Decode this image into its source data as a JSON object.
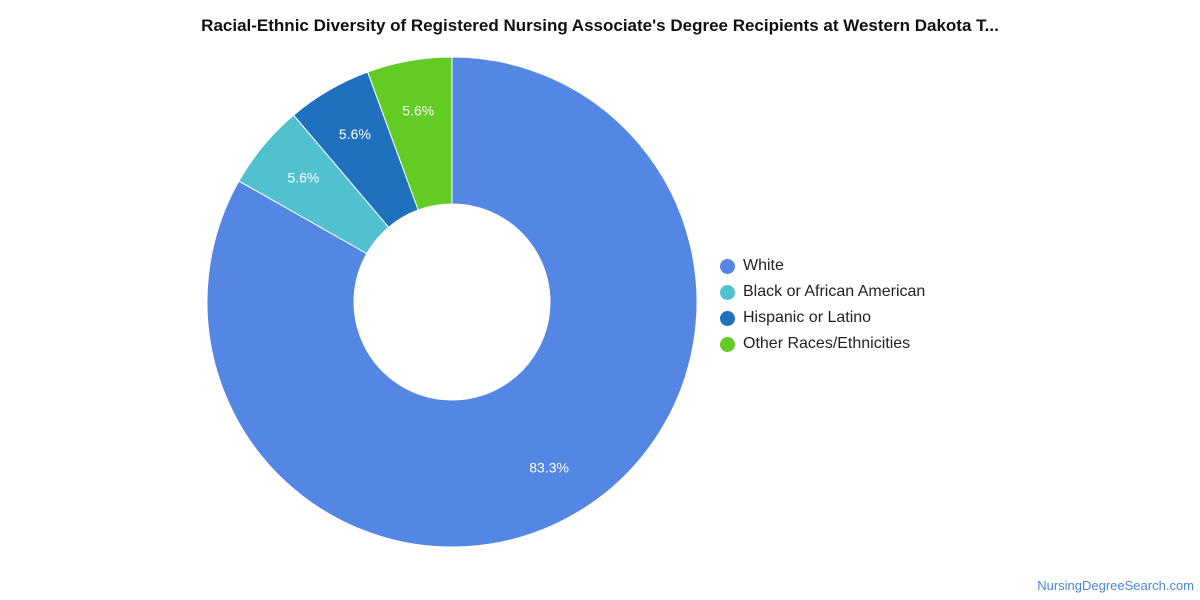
{
  "title": "Racial-Ethnic Diversity of Registered Nursing Associate's Degree Recipients at Western Dakota T...",
  "source": "NursingDegreeSearch.com",
  "chart_data": {
    "type": "pie",
    "subtype": "donut",
    "title": "Racial-Ethnic Diversity of Registered Nursing Associate's Degree Recipients at Western Dakota T...",
    "categories": [
      "White",
      "Black or African American",
      "Hispanic or Latino",
      "Other Races/Ethnicities"
    ],
    "values": [
      83.3,
      5.6,
      5.6,
      5.6
    ],
    "labels": [
      "83.3%",
      "5.6%",
      "5.6%",
      "5.6%"
    ],
    "colors": [
      "#5486e3",
      "#52c1cf",
      "#1f70bd",
      "#62cb24"
    ],
    "legend": {
      "position": "right",
      "items": [
        {
          "label": "White",
          "color": "#5486e3"
        },
        {
          "label": "Black or African American",
          "color": "#52c1cf"
        },
        {
          "label": "Hispanic or Latino",
          "color": "#1f70bd"
        },
        {
          "label": "Other Races/Ethnicities",
          "color": "#62cb24"
        }
      ]
    }
  }
}
